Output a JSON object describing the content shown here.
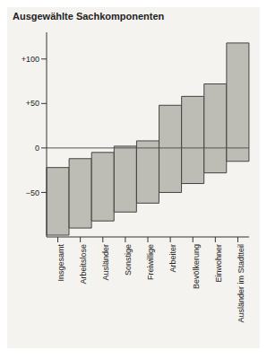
{
  "chart_data": {
    "type": "bar",
    "title": "Ausgewählte Sachkomponenten",
    "categories": [
      "Insgesamt",
      "Arbeitslose",
      "Ausländer",
      "Sonstige",
      "Freiwillige",
      "Arbeiter",
      "Bevölkerung",
      "Einwohner",
      "Ausländer im Stadtteil"
    ],
    "values": [
      [
        -98,
        -22
      ],
      [
        -90,
        -12
      ],
      [
        -82,
        -5
      ],
      [
        -72,
        2
      ],
      [
        -62,
        8
      ],
      [
        -50,
        48
      ],
      [
        -40,
        58
      ],
      [
        -28,
        72
      ],
      [
        -15,
        118
      ]
    ],
    "color": "#bdbdb5",
    "ylim": [
      -100,
      130
    ],
    "yticks": [
      {
        "value": -50,
        "label": "−50"
      },
      0,
      {
        "value": 50,
        "label": "+50"
      },
      {
        "value": 100,
        "label": "+100"
      }
    ],
    "grid": false
  }
}
